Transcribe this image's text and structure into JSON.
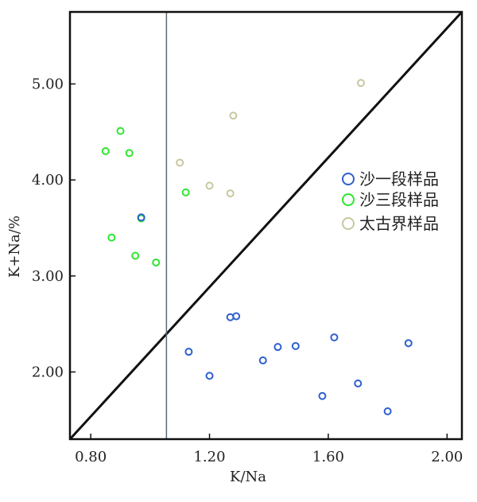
{
  "chart_data": {
    "type": "scatter",
    "title": "",
    "xlabel": "K/Na",
    "ylabel": "K+Na/%",
    "xlim": [
      0.73,
      2.05
    ],
    "ylim": [
      1.3,
      5.75
    ],
    "xticks": [
      0.8,
      1.2,
      1.6,
      2.0
    ],
    "yticks": [
      2.0,
      3.0,
      4.0,
      5.0
    ],
    "xtick_labels": [
      "0.80",
      "1.20",
      "1.60",
      "2.00"
    ],
    "ytick_labels": [
      "2.00",
      "3.00",
      "4.00",
      "5.00"
    ],
    "grid": false,
    "legend_position": "right-middle",
    "reference_lines": {
      "diagonal": {
        "from": [
          0.73,
          1.3
        ],
        "to": [
          2.05,
          5.75
        ],
        "color": "#111111"
      },
      "vertical": {
        "x": 1.055,
        "color": "#5a6a78"
      }
    },
    "series": [
      {
        "name": "沙一段样品",
        "color": "#2f5fd0",
        "x": [
          0.97,
          1.13,
          1.2,
          1.27,
          1.29,
          1.38,
          1.43,
          1.49,
          1.58,
          1.62,
          1.7,
          1.8,
          1.87
        ],
        "y": [
          3.61,
          2.21,
          1.96,
          2.57,
          2.58,
          2.12,
          2.26,
          2.27,
          1.75,
          2.36,
          1.88,
          1.59,
          2.3
        ]
      },
      {
        "name": "沙三段样品",
        "color": "#2ee62e",
        "x": [
          0.85,
          0.87,
          0.9,
          0.93,
          0.95,
          0.97,
          1.02,
          1.12
        ],
        "y": [
          4.3,
          3.4,
          4.51,
          4.28,
          3.21,
          3.6,
          3.14,
          3.87
        ]
      },
      {
        "name": "太古界样品",
        "color": "#c8c8a0",
        "x": [
          1.1,
          1.2,
          1.27,
          1.28,
          1.71
        ],
        "y": [
          4.18,
          3.94,
          3.86,
          4.67,
          5.01
        ]
      }
    ]
  }
}
